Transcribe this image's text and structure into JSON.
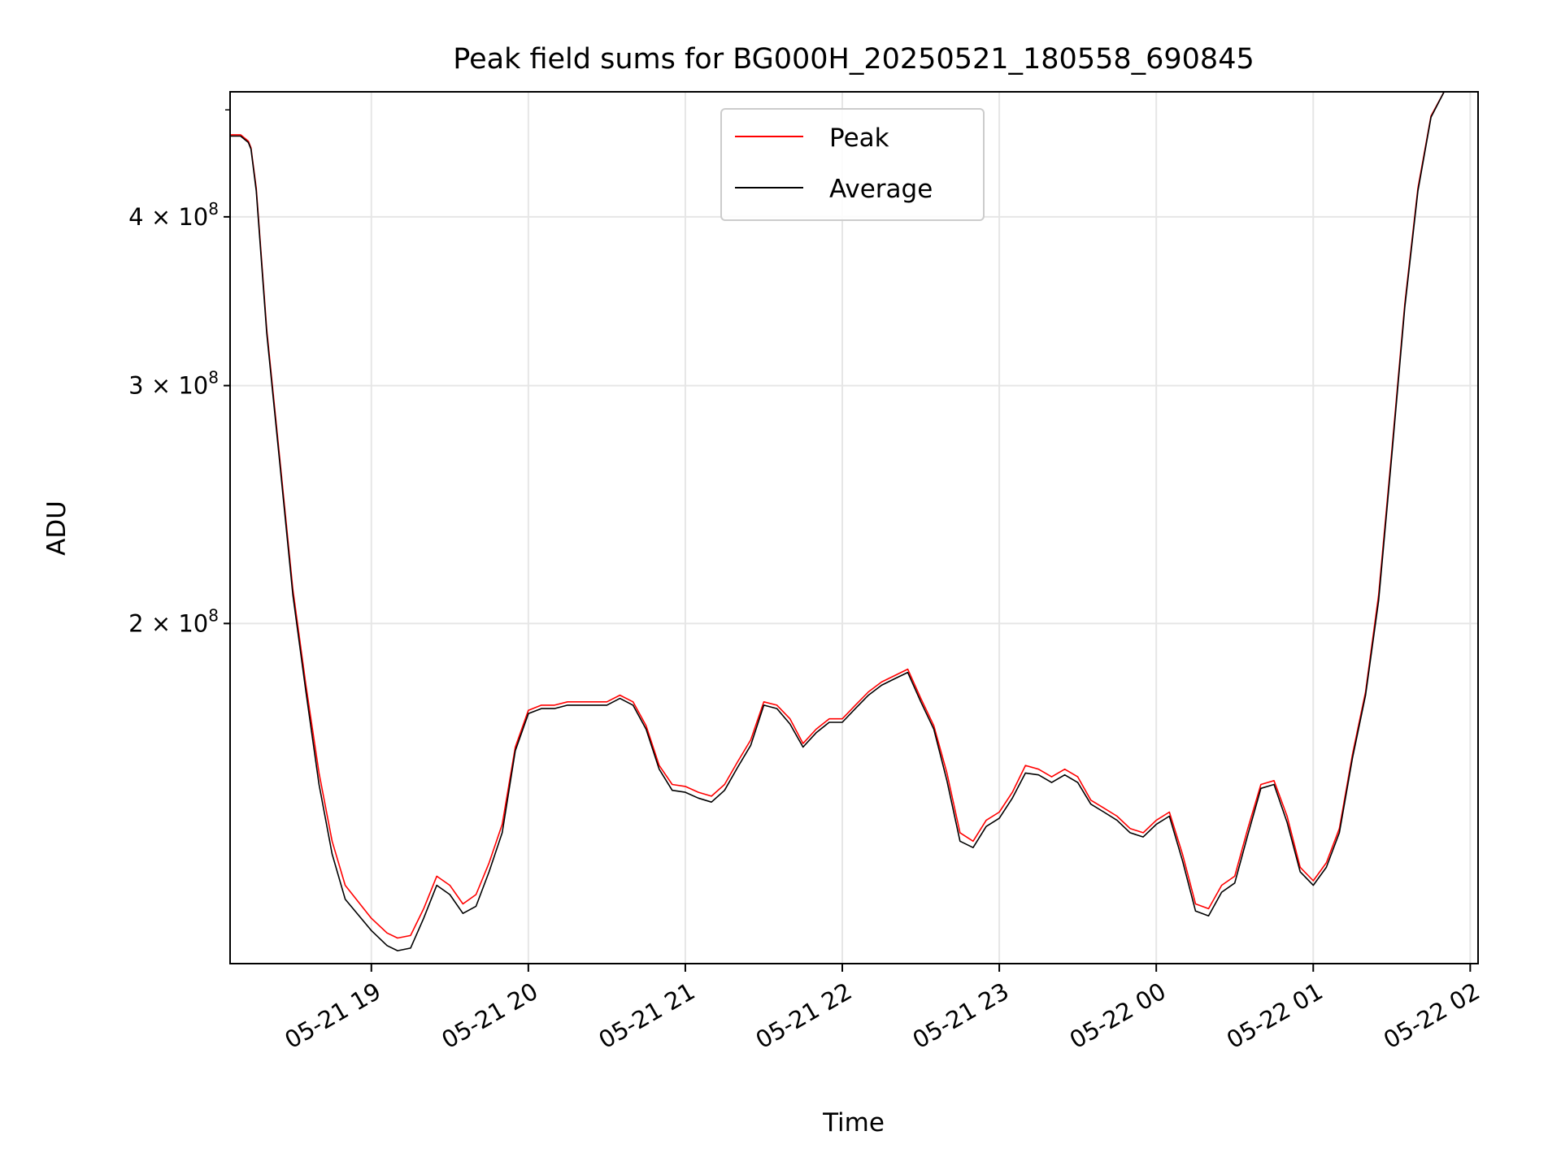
{
  "chart_data": {
    "type": "line",
    "title": "Peak field sums for BG000H_20250521_180558_690845",
    "xlabel": "Time",
    "ylabel": "ADU",
    "y_scale": "log",
    "ylim": [
      112000000,
      495000000
    ],
    "xlim": [
      "2025-05-21 18:06",
      "2025-05-22 02:03"
    ],
    "grid": true,
    "legend_position": "top-center",
    "x_ticks": [
      {
        "value": "2025-05-21 19:00",
        "label": "05-21 19"
      },
      {
        "value": "2025-05-21 20:00",
        "label": "05-21 20"
      },
      {
        "value": "2025-05-21 21:00",
        "label": "05-21 21"
      },
      {
        "value": "2025-05-21 22:00",
        "label": "05-21 22"
      },
      {
        "value": "2025-05-21 23:00",
        "label": "05-21 23"
      },
      {
        "value": "2025-05-22 00:00",
        "label": "05-22 00"
      },
      {
        "value": "2025-05-22 01:00",
        "label": "05-22 01"
      },
      {
        "value": "2025-05-22 02:00",
        "label": "05-22 02"
      }
    ],
    "y_ticks": [
      {
        "value": 200000000,
        "mantissa": "2",
        "base": "10",
        "exponent": "8",
        "times": "×"
      },
      {
        "value": 300000000,
        "mantissa": "3",
        "base": "10",
        "exponent": "8",
        "times": "×"
      },
      {
        "value": 400000000,
        "mantissa": "4",
        "base": "10",
        "exponent": "8",
        "times": "×"
      }
    ],
    "y_minor_ticks": [
      200000000,
      300000000,
      400000000,
      480000000
    ],
    "series": [
      {
        "name": "Peak",
        "color": "#ff0000",
        "x": [
          "2025-05-21 18:06",
          "2025-05-21 18:10",
          "2025-05-21 18:13",
          "2025-05-21 18:14",
          "2025-05-21 18:16",
          "2025-05-21 18:20",
          "2025-05-21 18:25",
          "2025-05-21 18:30",
          "2025-05-21 18:35",
          "2025-05-21 18:40",
          "2025-05-21 18:45",
          "2025-05-21 18:50",
          "2025-05-21 19:00",
          "2025-05-21 19:06",
          "2025-05-21 19:10",
          "2025-05-21 19:15",
          "2025-05-21 19:20",
          "2025-05-21 19:25",
          "2025-05-21 19:30",
          "2025-05-21 19:35",
          "2025-05-21 19:40",
          "2025-05-21 19:45",
          "2025-05-21 19:50",
          "2025-05-21 19:55",
          "2025-05-21 20:00",
          "2025-05-21 20:05",
          "2025-05-21 20:10",
          "2025-05-21 20:15",
          "2025-05-21 20:20",
          "2025-05-21 20:25",
          "2025-05-21 20:30",
          "2025-05-21 20:35",
          "2025-05-21 20:40",
          "2025-05-21 20:45",
          "2025-05-21 20:50",
          "2025-05-21 20:55",
          "2025-05-21 21:00",
          "2025-05-21 21:05",
          "2025-05-21 21:10",
          "2025-05-21 21:15",
          "2025-05-21 21:20",
          "2025-05-21 21:25",
          "2025-05-21 21:30",
          "2025-05-21 21:35",
          "2025-05-21 21:40",
          "2025-05-21 21:45",
          "2025-05-21 21:50",
          "2025-05-21 21:55",
          "2025-05-21 22:00",
          "2025-05-21 22:05",
          "2025-05-21 22:10",
          "2025-05-21 22:15",
          "2025-05-21 22:20",
          "2025-05-21 22:25",
          "2025-05-21 22:30",
          "2025-05-21 22:35",
          "2025-05-21 22:40",
          "2025-05-21 22:45",
          "2025-05-21 22:50",
          "2025-05-21 22:55",
          "2025-05-21 23:00",
          "2025-05-21 23:05",
          "2025-05-21 23:10",
          "2025-05-21 23:15",
          "2025-05-21 23:20",
          "2025-05-21 23:25",
          "2025-05-21 23:30",
          "2025-05-21 23:35",
          "2025-05-21 23:40",
          "2025-05-21 23:45",
          "2025-05-21 23:50",
          "2025-05-21 23:55",
          "2025-05-22 00:00",
          "2025-05-22 00:05",
          "2025-05-22 00:10",
          "2025-05-22 00:15",
          "2025-05-22 00:20",
          "2025-05-22 00:25",
          "2025-05-22 00:30",
          "2025-05-22 00:35",
          "2025-05-22 00:40",
          "2025-05-22 00:45",
          "2025-05-22 00:50",
          "2025-05-22 00:55",
          "2025-05-22 01:00",
          "2025-05-22 01:05",
          "2025-05-22 01:10",
          "2025-05-22 01:15",
          "2025-05-22 01:20",
          "2025-05-22 01:25",
          "2025-05-22 01:30",
          "2025-05-22 01:35",
          "2025-05-22 01:40",
          "2025-05-22 01:45",
          "2025-05-22 01:50",
          "2025-05-22 01:55",
          "2025-05-22 02:00",
          "2025-05-22 02:03"
        ],
        "values": [
          460000000,
          460000000,
          455000000,
          450000000,
          420000000,
          330000000,
          265000000,
          212000000,
          180000000,
          155000000,
          138000000,
          128000000,
          121000000,
          118000000,
          117000000,
          117500000,
          123000000,
          130000000,
          128000000,
          124000000,
          126000000,
          133000000,
          142000000,
          162000000,
          172500000,
          174000000,
          174000000,
          175000000,
          175000000,
          175000000,
          175000000,
          177000000,
          175000000,
          168000000,
          157000000,
          152000000,
          151500000,
          150000000,
          149000000,
          152000000,
          158000000,
          164000000,
          175000000,
          174000000,
          170000000,
          163000000,
          167000000,
          170000000,
          170000000,
          174000000,
          178000000,
          181000000,
          183000000,
          185000000,
          176000000,
          168000000,
          155000000,
          140000000,
          138000000,
          143000000,
          145000000,
          150000000,
          157000000,
          156000000,
          154000000,
          156000000,
          154000000,
          148000000,
          146000000,
          144000000,
          141000000,
          140000000,
          143000000,
          145000000,
          135000000,
          124000000,
          123000000,
          128000000,
          130000000,
          141000000,
          152000000,
          153000000,
          144000000,
          132000000,
          129000000,
          133000000,
          141000000,
          160000000,
          178000000,
          210000000,
          268000000,
          345000000,
          420000000,
          475000000,
          495000000,
          495000000,
          495000000,
          495000000
        ]
      },
      {
        "name": "Average",
        "color": "#000000",
        "x": [
          "2025-05-21 18:06",
          "2025-05-21 18:10",
          "2025-05-21 18:13",
          "2025-05-21 18:14",
          "2025-05-21 18:16",
          "2025-05-21 18:20",
          "2025-05-21 18:25",
          "2025-05-21 18:30",
          "2025-05-21 18:35",
          "2025-05-21 18:40",
          "2025-05-21 18:45",
          "2025-05-21 18:50",
          "2025-05-21 19:00",
          "2025-05-21 19:06",
          "2025-05-21 19:10",
          "2025-05-21 19:15",
          "2025-05-21 19:20",
          "2025-05-21 19:25",
          "2025-05-21 19:30",
          "2025-05-21 19:35",
          "2025-05-21 19:40",
          "2025-05-21 19:45",
          "2025-05-21 19:50",
          "2025-05-21 19:55",
          "2025-05-21 20:00",
          "2025-05-21 20:05",
          "2025-05-21 20:10",
          "2025-05-21 20:15",
          "2025-05-21 20:20",
          "2025-05-21 20:25",
          "2025-05-21 20:30",
          "2025-05-21 20:35",
          "2025-05-21 20:40",
          "2025-05-21 20:45",
          "2025-05-21 20:50",
          "2025-05-21 20:55",
          "2025-05-21 21:00",
          "2025-05-21 21:05",
          "2025-05-21 21:10",
          "2025-05-21 21:15",
          "2025-05-21 21:20",
          "2025-05-21 21:25",
          "2025-05-21 21:30",
          "2025-05-21 21:35",
          "2025-05-21 21:40",
          "2025-05-21 21:45",
          "2025-05-21 21:50",
          "2025-05-21 21:55",
          "2025-05-21 22:00",
          "2025-05-21 22:05",
          "2025-05-21 22:10",
          "2025-05-21 22:15",
          "2025-05-21 22:20",
          "2025-05-21 22:25",
          "2025-05-21 22:30",
          "2025-05-21 22:35",
          "2025-05-21 22:40",
          "2025-05-21 22:45",
          "2025-05-21 22:50",
          "2025-05-21 22:55",
          "2025-05-21 23:00",
          "2025-05-21 23:05",
          "2025-05-21 23:10",
          "2025-05-21 23:15",
          "2025-05-21 23:20",
          "2025-05-21 23:25",
          "2025-05-21 23:30",
          "2025-05-21 23:35",
          "2025-05-21 23:40",
          "2025-05-21 23:45",
          "2025-05-21 23:50",
          "2025-05-21 23:55",
          "2025-05-22 00:00",
          "2025-05-22 00:05",
          "2025-05-22 00:10",
          "2025-05-22 00:15",
          "2025-05-22 00:20",
          "2025-05-22 00:25",
          "2025-05-22 00:30",
          "2025-05-22 00:35",
          "2025-05-22 00:40",
          "2025-05-22 00:45",
          "2025-05-22 00:50",
          "2025-05-22 00:55",
          "2025-05-22 01:00",
          "2025-05-22 01:05",
          "2025-05-22 01:10",
          "2025-05-22 01:15",
          "2025-05-22 01:20",
          "2025-05-22 01:25",
          "2025-05-22 01:30",
          "2025-05-22 01:35",
          "2025-05-22 01:40",
          "2025-05-22 01:45",
          "2025-05-22 01:50",
          "2025-05-22 01:55",
          "2025-05-22 02:00",
          "2025-05-22 02:03"
        ],
        "values": [
          459000000,
          459000000,
          454000000,
          449000000,
          418000000,
          328000000,
          263000000,
          210000000,
          178000000,
          152000000,
          135000000,
          125000000,
          118500000,
          115500000,
          114500000,
          115000000,
          121000000,
          128000000,
          126000000,
          122000000,
          123500000,
          131000000,
          140000000,
          161000000,
          171500000,
          173000000,
          173000000,
          174000000,
          174000000,
          174000000,
          174000000,
          176000000,
          174000000,
          167000000,
          156000000,
          150500000,
          150000000,
          148500000,
          147500000,
          150500000,
          156500000,
          162500000,
          174000000,
          173000000,
          168500000,
          162000000,
          166000000,
          169000000,
          169000000,
          173000000,
          177000000,
          180000000,
          182000000,
          184000000,
          175000000,
          167000000,
          153000000,
          138000000,
          136500000,
          141500000,
          143500000,
          148500000,
          155000000,
          154500000,
          152500000,
          154500000,
          152500000,
          147000000,
          145000000,
          143000000,
          140000000,
          139000000,
          142000000,
          144000000,
          133500000,
          122500000,
          121500000,
          126500000,
          128500000,
          139500000,
          151000000,
          152000000,
          142500000,
          131000000,
          128000000,
          132000000,
          140000000,
          159000000,
          177000000,
          208000000,
          266000000,
          343000000,
          418000000,
          474000000,
          495000000,
          495000000,
          495000000,
          495000000
        ]
      }
    ]
  }
}
